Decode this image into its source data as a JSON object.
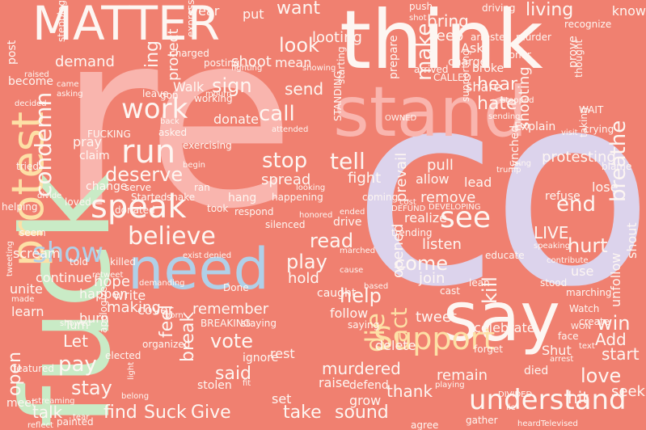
{
  "colors": {
    "background": "#f08070",
    "pink": "#f9b5ae",
    "lavender": "#dcd3ec",
    "mint": "#c9ebc6",
    "white": "#fdf6f2",
    "yellow": "#fde0a6",
    "blue": "#b0d0e8",
    "peach": "#fcd2b4"
  },
  "words": {
    "re": "re",
    "co": "co",
    "fuck": "fuck",
    "think": "think",
    "stand": "stand",
    "say": "say",
    "need": "need",
    "matter": "MATTER",
    "protest": "protest",
    "speak": "speak",
    "support": "Support",
    "believe": "believe",
    "run": "run",
    "work": "work",
    "show": "show",
    "see": "see",
    "understand": "understand",
    "deserve": "deserve",
    "call": "call",
    "stop": "stop",
    "tell": "tell",
    "love": "love",
    "win": "win",
    "find": "find",
    "suck": "Suck",
    "give": "Give",
    "take": "take",
    "sound": "sound",
    "talk": "talk",
    "die": "die",
    "act": "act",
    "breathe": "breathe",
    "hurt": "hurt",
    "end": "end",
    "come": "come",
    "look": "look",
    "want": "want",
    "demand": "demand",
    "sign": "sign",
    "shoot": "shoot",
    "hear": "hear",
    "hate": "hate",
    "send": "send",
    "make": "make",
    "bring": "bring",
    "play": "play",
    "read": "read",
    "help": "help",
    "vote": "vote",
    "said": "said",
    "pay": "pay",
    "stay": "stay",
    "let": "Let",
    "open": "open",
    "remember": "remember",
    "making": "making",
    "murdered": "murdered",
    "tweet": "tweet",
    "thank": "thank",
    "remain": "remain",
    "hit": "hit",
    "start": "start",
    "add": "Add",
    "live": "LIVE",
    "listen": "listen",
    "remove": "remove",
    "spread": "spread",
    "fight": "fight",
    "prevail": "prevail",
    "realize": "realize",
    "join": "join",
    "opened": "opened",
    "condemn": "condemn",
    "ing": "ing",
    "feel": "feel",
    "break": "break",
    "kill": "kill",
    "protesting": "protesting",
    "celebrate": "celebrate",
    "shooting": "shooting",
    "living": "living",
    "keep": "keep",
    "looting": "looting",
    "hope": "hope",
    "happen": "happen",
    "continue": "continue",
    "scream": "scream",
    "unite": "unite",
    "learn": "learn",
    "burn": "burn",
    "hold": "hold",
    "write": "write",
    "cover": "cover",
    "pull": "pull",
    "allow": "allow",
    "lead": "lead",
    "pray": "pray",
    "claim": "claim",
    "change": "change",
    "donate": "donate",
    "mean": "mean",
    "grow": "grow",
    "delete": "delete",
    "follow": "follow",
    "raise": "raise",
    "defend": "defend",
    "set": "set",
    "rest": "rest",
    "seek": "seek",
    "shut": "Shut",
    "lose": "lose",
    "refuse": "refuse",
    "use": "use",
    "unfollow": "unfollow",
    "shout": "shout",
    "wear": "wear",
    "put": "put",
    "protect": "protect",
    "ask": "Ask",
    "know": "know",
    "walk": "Walk",
    "stolen": "stolen",
    "turn": "Turn",
    "ignore": "ignore",
    "meet": "meet",
    "post": "post",
    "charge": "charge",
    "share": "share",
    "standing": "STANDING",
    "fucking": "FUCKING",
    "caught": "caught",
    "explain": "Explain",
    "gone": "gon",
    "prepare": "prepare",
    "express": "express",
    "posting": "posting",
    "charged": "charged",
    "prove": "prove",
    "broke": "broke",
    "supporting": "supporting",
    "become": "become",
    "leave": "leave",
    "working": "working",
    "exercising": "exercising",
    "arrested": "arrested",
    "murder": "murder",
    "lynched": "lynched",
    "hang": "hang",
    "killed": "killed",
    "face": "face",
    "watch": "Watch",
    "create": "create",
    "organized": "organized",
    "elected": "elected",
    "stood": "stood",
    "marching": "marching",
    "taking": "taking",
    "thought": "thought",
    "blame": "blame",
    "serve": "serve",
    "trending": "trending",
    "cast": "cast",
    "educate": "educate",
    "forget": "forget",
    "breaking": "BREAKING",
    "donated": "donated",
    "done": "Done",
    "saying": "saying",
    "staying": "staying",
    "apologize": "apologize",
    "told": "told",
    "tried": "tried",
    "painted": "painted",
    "reflect": "reflect",
    "tweeting": "tweeting",
    "featured": "featured",
    "agree": "agree",
    "gather": "gather",
    "died": "died",
    "heard": "heardTelevised",
    "seem": "seem",
    "crying": "crying",
    "wait": "WAIT",
    "push": "push",
    "driving": "driving",
    "shot": "shot",
    "starting": "starting",
    "stepping": "stepping",
    "recognize": "recognize",
    "honor": "honor",
    "arrived": "arrived",
    "called": "CALLED",
    "owned": "OWNED",
    "begin": "begin",
    "asked": "asked",
    "happening": "happening",
    "took": "took",
    "respond": "respond",
    "silenced": "silenced",
    "drive": "drive",
    "coming": "coming",
    "defund": "DEFUND",
    "developing": "DEVELOPING",
    "lean": "lean",
    "cost": "cost",
    "contribute": "contribute",
    "visit": "visit",
    "divide": "divide",
    "loved": "loved",
    "helping": "helping",
    "ran": "ran",
    "started": "Started",
    "shake": "shake",
    "trump": "trump",
    "sending": "sending",
    "using": "using",
    "divided": "DIVIDED",
    "won": "WON",
    "text": "text",
    "streaming": "streaming",
    "belong": "belong",
    "light": "light",
    "fit": "fit",
    "playing": "playing",
    "cause": "cause",
    "based": "based",
    "speaking": "speaking",
    "fighting": "fighting",
    "showing": "showing",
    "decided": "decided",
    "asking": "asking",
    "came": "came",
    "raised": "raised",
    "stopped": "stopped",
    "born": "born",
    "exist": "exist",
    "denied": "denied",
    "retweet": "retweet",
    "demanding": "demanding",
    "attended": "attended",
    "marched": "marched",
    "ended": "ended",
    "looking": "looking",
    "lie": "lie",
    "arrest": "arrest",
    "honored": "honored",
    "mourn": "mourn",
    "back": "back",
    "showed": "showed",
    "made": "made",
    "tear": "tear"
  }
}
